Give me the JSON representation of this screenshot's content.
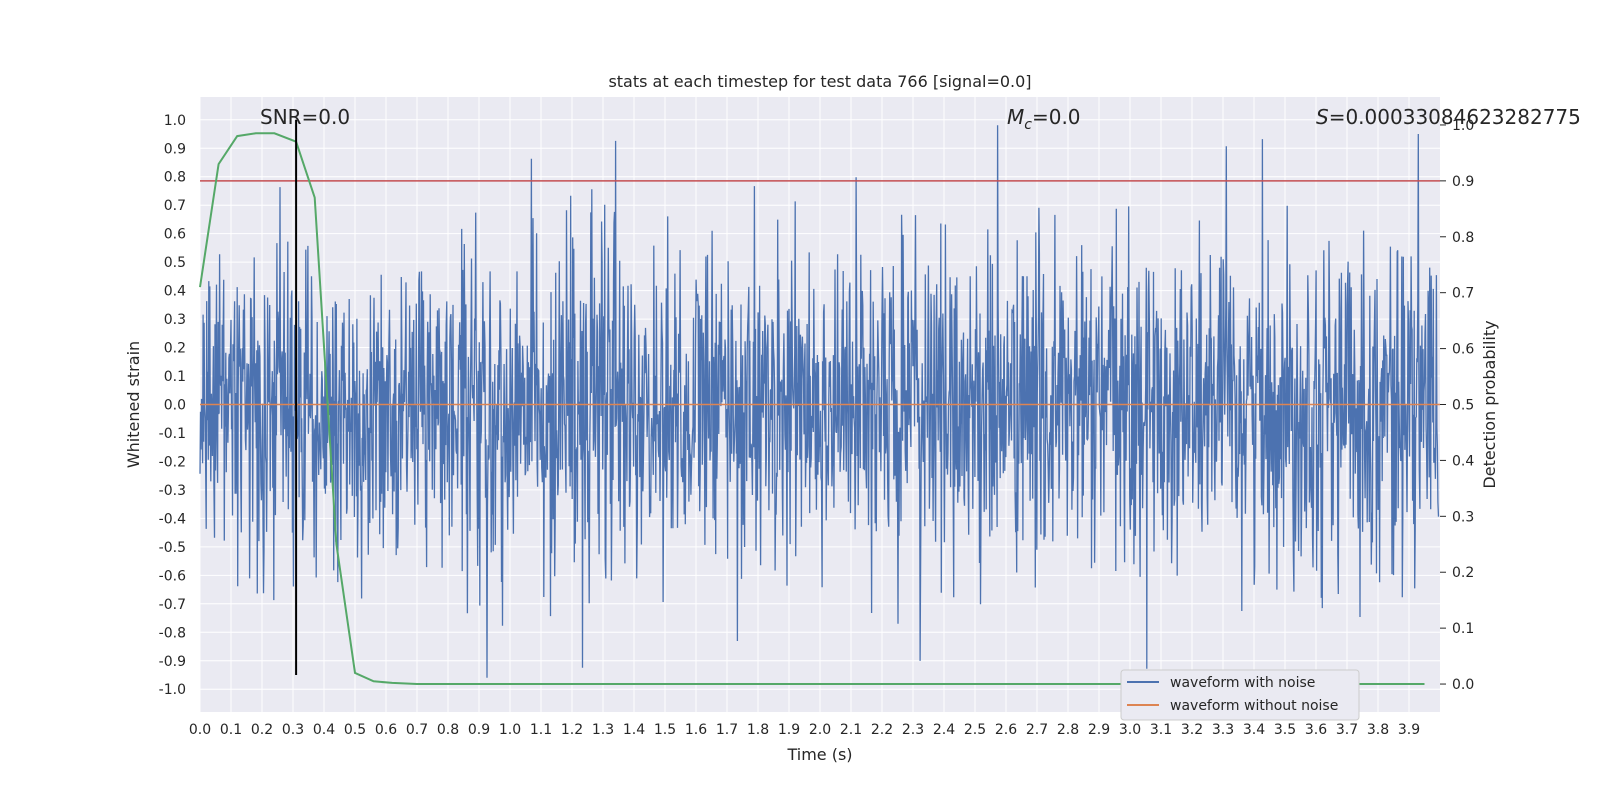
{
  "chart_data": {
    "type": "line",
    "title": "stats at each timestep for test data 766 [signal=0.0]",
    "xlabel": "Time (s)",
    "ylabel": "Whitened strain",
    "y2label": "Detection probability",
    "xlim": [
      0.0,
      4.0
    ],
    "ylim": [
      -1.08,
      1.08
    ],
    "y2lim": [
      -0.05,
      1.05
    ],
    "xticks": [
      "0.0",
      "0.1",
      "0.2",
      "0.3",
      "0.4",
      "0.5",
      "0.6",
      "0.7",
      "0.8",
      "0.9",
      "1.0",
      "1.1",
      "1.2",
      "1.3",
      "1.4",
      "1.5",
      "1.6",
      "1.7",
      "1.8",
      "1.9",
      "2.0",
      "2.1",
      "2.2",
      "2.3",
      "2.4",
      "2.5",
      "2.6",
      "2.7",
      "2.8",
      "2.9",
      "3.0",
      "3.1",
      "3.2",
      "3.3",
      "3.4",
      "3.5",
      "3.6",
      "3.7",
      "3.8",
      "3.9"
    ],
    "yticks": [
      "1.0",
      "0.9",
      "0.8",
      "0.7",
      "0.6",
      "0.5",
      "0.4",
      "0.3",
      "0.2",
      "0.1",
      "0.0",
      "-0.1",
      "-0.2",
      "-0.3",
      "-0.4",
      "-0.5",
      "-0.6",
      "-0.7",
      "-0.8",
      "-0.9",
      "-1.0"
    ],
    "y2ticks": [
      "1.0",
      "0.9",
      "0.8",
      "0.7",
      "0.6",
      "0.5",
      "0.4",
      "0.3",
      "0.2",
      "0.1",
      "0.0"
    ],
    "annotations": {
      "snr": "SNR=0.0",
      "mc_symbol": "M",
      "mc_sub": "c",
      "mc_value": "=0.0",
      "s_symbol": "S",
      "s_value": "=0.00033084623282775"
    },
    "series": [
      {
        "name": "waveform with noise",
        "color": "#4c72b0",
        "noise_amplitude_typical": 0.45,
        "noise_peak_max": 1.0,
        "noise_peak_min": -0.96,
        "note": "dense noise; rendered procedurally"
      },
      {
        "name": "waveform without noise",
        "color": "#dd8452",
        "x": [
          0.0,
          4.0
        ],
        "y": [
          0.0,
          0.0
        ]
      },
      {
        "name": "detection probability",
        "color": "#55a868",
        "axis": "right",
        "x": [
          0.0,
          0.06,
          0.12,
          0.18,
          0.24,
          0.31,
          0.37,
          0.44,
          0.5,
          0.56,
          0.62,
          0.7,
          1.0,
          2.0,
          3.0,
          3.95
        ],
        "y": [
          0.71,
          0.93,
          0.98,
          0.985,
          0.985,
          0.97,
          0.87,
          0.25,
          0.02,
          0.005,
          0.002,
          0.0,
          0.0,
          0.0,
          0.0,
          0.0
        ]
      }
    ],
    "threshold": {
      "axis": "right",
      "y": 0.9,
      "color": "#c44e52"
    },
    "vline": {
      "x": 0.31,
      "y_from": -0.95,
      "y_to": 1.0,
      "color": "#000000"
    },
    "legend": {
      "placement": "lower-right",
      "entries": [
        {
          "label": "waveform with noise",
          "color": "#4c72b0"
        },
        {
          "label": "waveform without noise",
          "color": "#dd8452"
        }
      ]
    },
    "colors": {
      "background": "#eaeaf2",
      "grid": "#ffffff"
    }
  }
}
